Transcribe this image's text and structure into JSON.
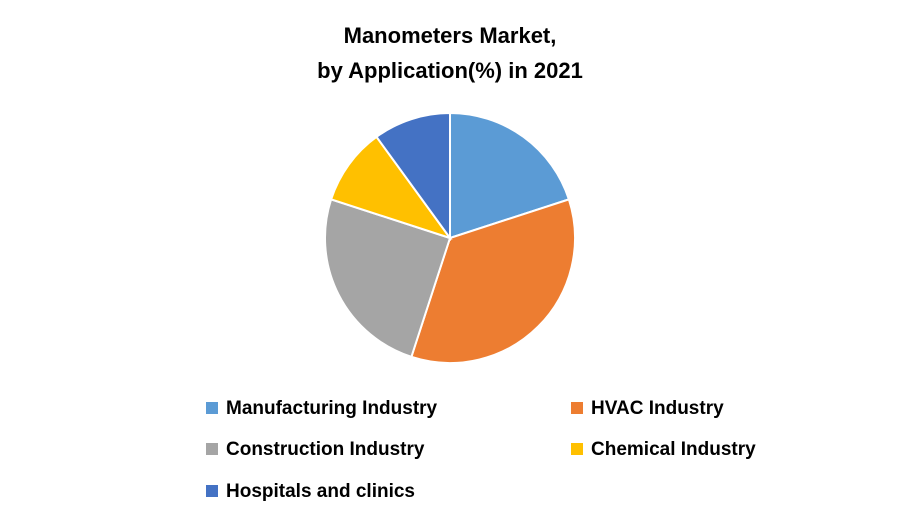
{
  "chart_data": {
    "type": "pie",
    "title": [
      "Manometers Market,",
      "by Application(%) in 2021"
    ],
    "categories": [
      "Manufacturing Industry",
      "HVAC Industry",
      "Construction Industry",
      "Chemical Industry",
      "Hospitals and clinics"
    ],
    "values": [
      20,
      35,
      25,
      10,
      10
    ],
    "colors": [
      "#5b9bd5",
      "#ed7d31",
      "#a5a5a5",
      "#ffc000",
      "#4472c4"
    ]
  }
}
